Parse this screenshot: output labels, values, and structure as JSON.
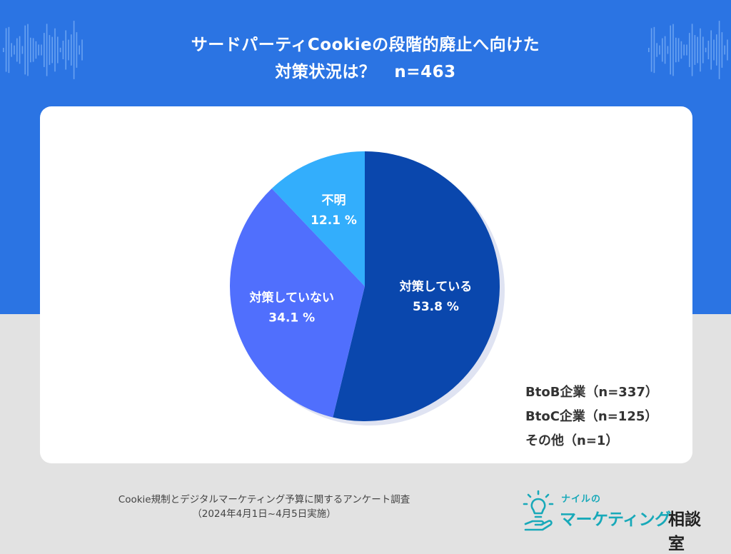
{
  "header": {
    "title_line1": "サードパーティCookieの段階的廃止へ向けた",
    "title_line2": "対策状況は？",
    "title_n": "n=463"
  },
  "chart_data": {
    "type": "pie",
    "slices": [
      {
        "label": "対策している",
        "value": 53.8,
        "value_text": "53.8 %",
        "color": "#0a47ad"
      },
      {
        "label": "対策していない",
        "value": 34.1,
        "value_text": "34.1 %",
        "color": "#506ffd"
      },
      {
        "label": "不明",
        "value": 12.1,
        "value_text": "12.1 %",
        "color": "#33aefc"
      }
    ],
    "start_angle_deg": 0,
    "direction": "clockwise"
  },
  "legend": {
    "btob": "BtoB企業（n=337）",
    "btoc": "BtoC企業（n=125）",
    "other": "その他（n=1）"
  },
  "footer": {
    "survey_name": "Cookie規制とデジタルマーケティング予算に関するアンケート調査",
    "survey_period": "（2024年4月1日~4月5日実施）"
  },
  "logo": {
    "small_text": "ナイルの",
    "main_text": "マーケティング",
    "suffix_text": "相談室",
    "icon": "lightbulb-hand-icon",
    "color": "#18a9b9"
  },
  "colors": {
    "background_top": "#2b74e3",
    "background_bottom": "#e2e2e2",
    "card": "#ffffff"
  }
}
